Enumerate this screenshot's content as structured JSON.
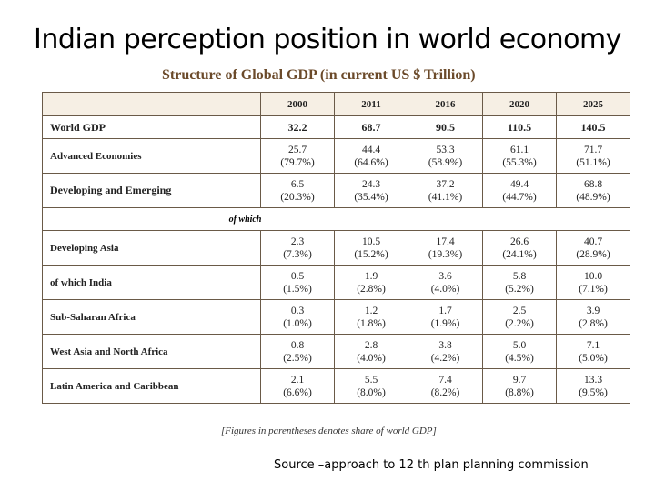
{
  "title": "Indian perception position in world  economy",
  "table_title": "Structure of Global GDP (in current US $ Trillion)",
  "columns": [
    "2000",
    "2011",
    "2016",
    "2020",
    "2025"
  ],
  "of_which_label": "of which",
  "rows": [
    {
      "label": "World GDP",
      "values": [
        "32.2",
        "68.7",
        "90.5",
        "110.5",
        "140.5"
      ]
    },
    {
      "label": "Advanced Economies",
      "values": [
        "25.7",
        "44.4",
        "53.3",
        "61.1",
        "71.7"
      ],
      "shares": [
        "(79.7%)",
        "(64.6%)",
        "(58.9%)",
        "(55.3%)",
        "(51.1%)"
      ]
    },
    {
      "label": "Developing and Emerging",
      "values": [
        "6.5",
        "24.3",
        "37.2",
        "49.4",
        "68.8"
      ],
      "shares": [
        "(20.3%)",
        "(35.4%)",
        "(41.1%)",
        "(44.7%)",
        "(48.9%)"
      ]
    },
    {
      "label": "Developing Asia",
      "values": [
        "2.3",
        "10.5",
        "17.4",
        "26.6",
        "40.7"
      ],
      "shares": [
        "(7.3%)",
        "(15.2%)",
        "(19.3%)",
        "(24.1%)",
        "(28.9%)"
      ]
    },
    {
      "label": "of which India",
      "values": [
        "0.5",
        "1.9",
        "3.6",
        "5.8",
        "10.0"
      ],
      "shares": [
        "(1.5%)",
        "(2.8%)",
        "(4.0%)",
        "(5.2%)",
        "(7.1%)"
      ]
    },
    {
      "label": "Sub-Saharan Africa",
      "values": [
        "0.3",
        "1.2",
        "1.7",
        "2.5",
        "3.9"
      ],
      "shares": [
        "(1.0%)",
        "(1.8%)",
        "(1.9%)",
        "(2.2%)",
        "(2.8%)"
      ]
    },
    {
      "label": "West Asia and North Africa",
      "values": [
        "0.8",
        "2.8",
        "3.8",
        "5.0",
        "7.1"
      ],
      "shares": [
        "(2.5%)",
        "(4.0%)",
        "(4.2%)",
        "(4.5%)",
        "(5.0%)"
      ]
    },
    {
      "label": "Latin America and Caribbean",
      "values": [
        "2.1",
        "5.5",
        "7.4",
        "9.7",
        "13.3"
      ],
      "shares": [
        "(6.6%)",
        "(8.0%)",
        "(8.2%)",
        "(8.8%)",
        "(9.5%)"
      ]
    }
  ],
  "note": "[Figures in parentheses denotes share of world GDP]",
  "source": "Source –approach to 12 th plan planning commission"
}
